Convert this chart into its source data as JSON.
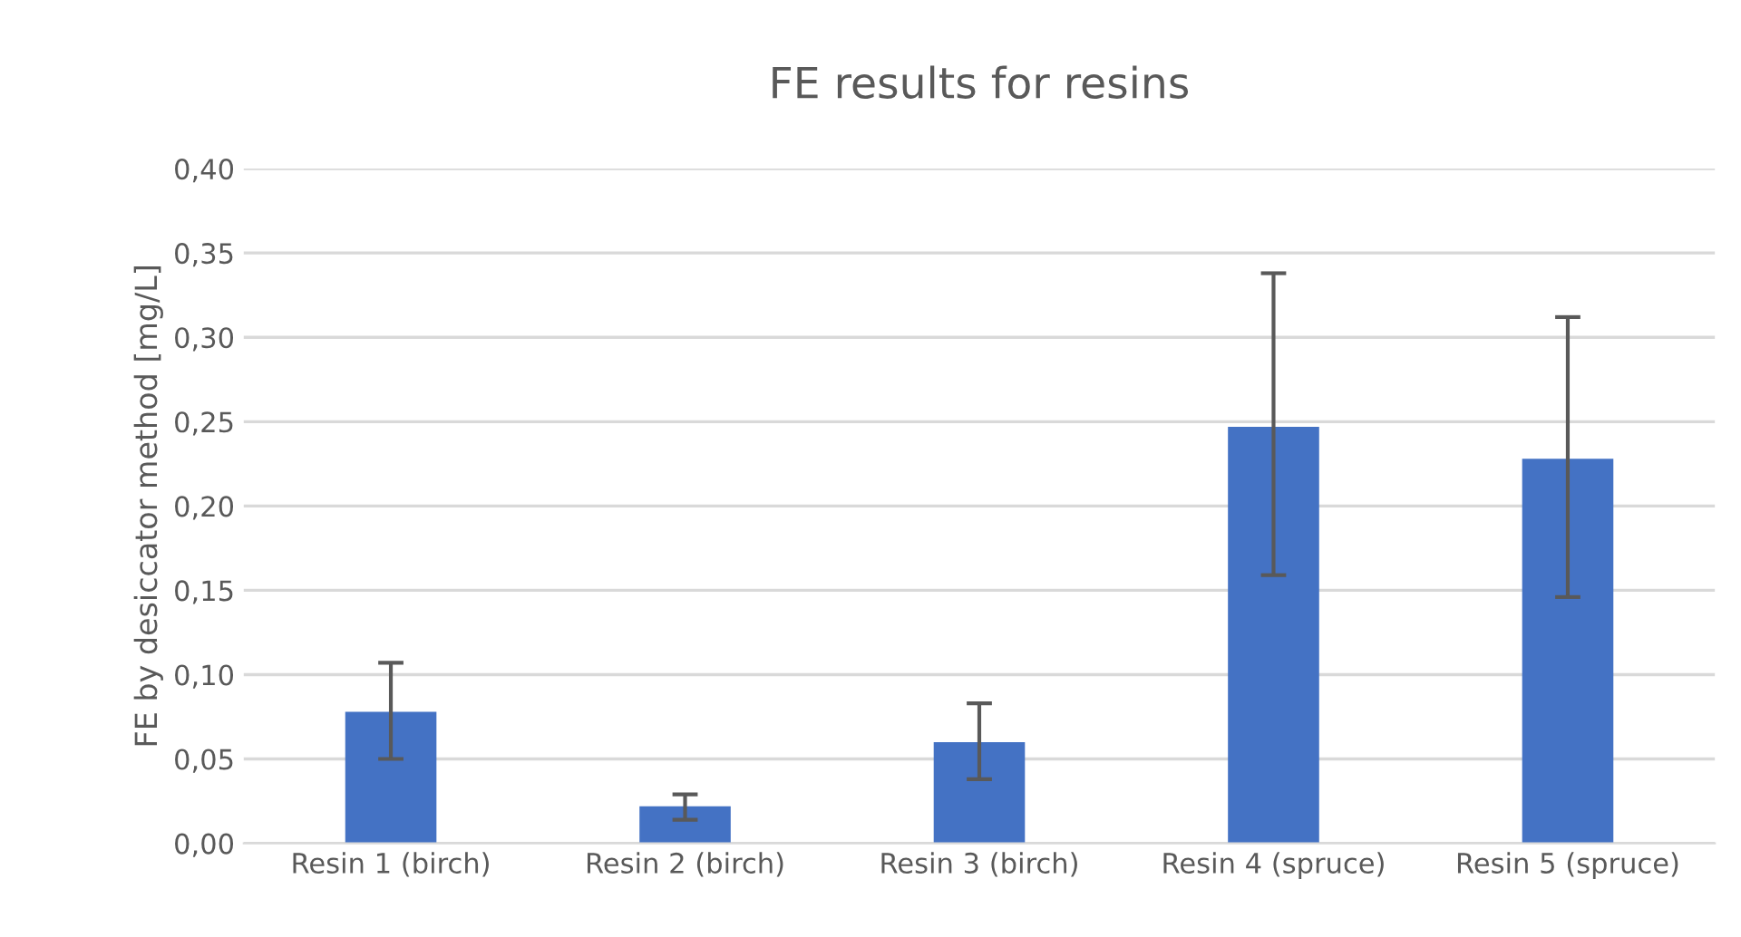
{
  "chart_data": {
    "type": "bar",
    "title": "FE results for resins",
    "ylabel": "FE by desiccator method [mg/L]",
    "categories": [
      "Resin 1 (birch)",
      "Resin 2 (birch)",
      "Resin 3 (birch)",
      "Resin 4 (spruce)",
      "Resin 5 (spruce)"
    ],
    "values": [
      0.078,
      0.022,
      0.06,
      0.247,
      0.228
    ],
    "errors": [
      [
        0.05,
        0.107
      ],
      [
        0.014,
        0.029
      ],
      [
        0.038,
        0.083
      ],
      [
        0.159,
        0.338
      ],
      [
        0.146,
        0.312
      ]
    ],
    "color": "#4472c4",
    "ylim": [
      0,
      0.4
    ],
    "yticks": [
      {
        "value": 0,
        "label": "0,00"
      },
      {
        "value": 0.05,
        "label": "0,05"
      },
      {
        "value": 0.1,
        "label": "0,10"
      },
      {
        "value": 0.15,
        "label": "0,15"
      },
      {
        "value": 0.2,
        "label": "0,20"
      },
      {
        "value": 0.25,
        "label": "0,25"
      },
      {
        "value": 0.3,
        "label": "0,30"
      },
      {
        "value": 0.35,
        "label": "0,35"
      },
      {
        "value": 0.4,
        "label": "0,40"
      }
    ],
    "grid": "y",
    "legend": false
  }
}
